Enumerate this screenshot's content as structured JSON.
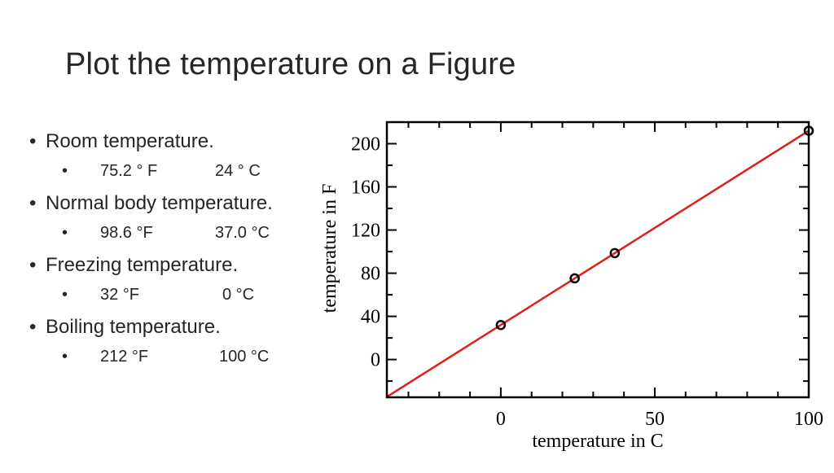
{
  "slide": {
    "title": "Plot the temperature on a Figure"
  },
  "bullets": [
    {
      "label": "Room temperature.",
      "fahrenheit": "75.2 ° F",
      "celsius": "24  ° C"
    },
    {
      "label": "Normal body temperature.",
      "fahrenheit": "98.6 °F",
      "celsius": "37.0 °C"
    },
    {
      "label": "Freezing temperature.",
      "fahrenheit": "32 °F",
      "celsius": "0 °C"
    },
    {
      "label": "Boiling temperature.",
      "fahrenheit": "212 °F",
      "celsius": "100 °C"
    }
  ],
  "chart_data": {
    "type": "scatter",
    "xlabel": "temperature in C",
    "ylabel": "temperature in F",
    "xlim": [
      -37,
      100
    ],
    "ylim": [
      -35,
      220
    ],
    "x_ticks": [
      0,
      50,
      100
    ],
    "y_ticks": [
      0,
      40,
      80,
      120,
      160,
      200
    ],
    "grid": false,
    "series": [
      {
        "kind": "points",
        "marker": "open-circle",
        "color": "#000000",
        "points": [
          {
            "x": 0,
            "y": 32
          },
          {
            "x": 24,
            "y": 75.2
          },
          {
            "x": 37,
            "y": 98.6
          },
          {
            "x": 100,
            "y": 212
          }
        ]
      },
      {
        "kind": "line",
        "color": "#e0201b",
        "points": [
          {
            "x": -37,
            "y": -34.6
          },
          {
            "x": 100,
            "y": 212
          }
        ]
      }
    ]
  }
}
